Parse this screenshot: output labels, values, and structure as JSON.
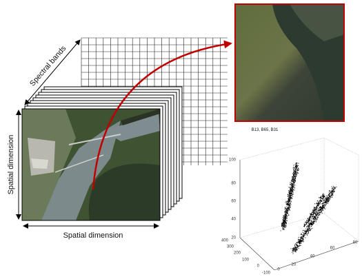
{
  "labels": {
    "spectral_bands": "Spectral bands",
    "spatial_vertical": "Spatial dimension",
    "spatial_horizontal": "Spatial dimension"
  },
  "scatter": {
    "title": "B13, B65, B31",
    "z_ticks": [
      100,
      80,
      60,
      40,
      20
    ],
    "y_ticks": [
      400,
      300,
      200,
      100,
      0,
      -100
    ],
    "x_ticks": [
      0,
      20,
      40,
      60,
      80
    ]
  }
}
